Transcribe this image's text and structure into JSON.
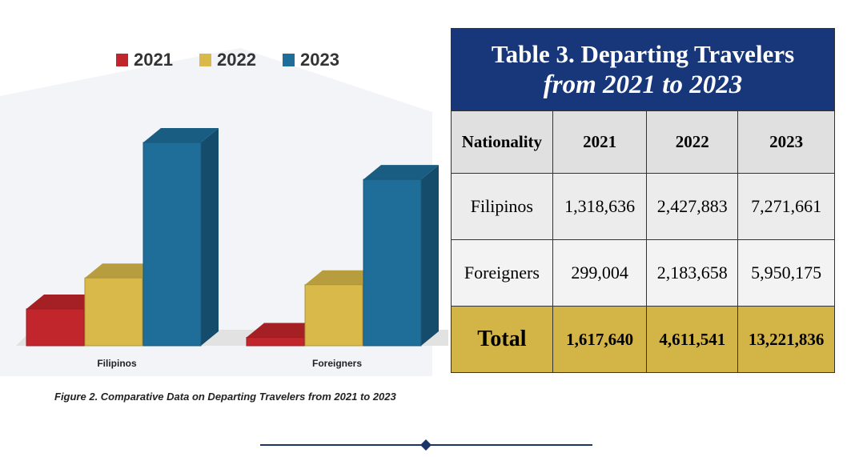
{
  "chart_data": {
    "type": "bar",
    "categories": [
      "Filipinos",
      "Foreigners"
    ],
    "series": [
      {
        "name": "2021",
        "color": "#c1262c",
        "values": [
          1318636,
          299004
        ]
      },
      {
        "name": "2022",
        "color": "#d8b94a",
        "values": [
          2427883,
          2183658
        ]
      },
      {
        "name": "2023",
        "color": "#1f6d99",
        "values": [
          7271661,
          5950175
        ]
      }
    ],
    "caption": "Figure 2. Comparative Data on Departing Travelers from 2021 to 2023"
  },
  "table": {
    "title": [
      "Table 3. Departing Travelers",
      "from 2021 to 2023"
    ],
    "columns": [
      "Nationality",
      "2021",
      "2022",
      "2023"
    ],
    "rows": [
      [
        "Filipinos",
        "1,318,636",
        "2,427,883",
        "7,271,661"
      ],
      [
        "Foreigners",
        "299,004",
        "2,183,658",
        "5,950,175"
      ],
      [
        "Total",
        "1,617,640",
        "4,611,541",
        "13,221,836"
      ]
    ]
  }
}
